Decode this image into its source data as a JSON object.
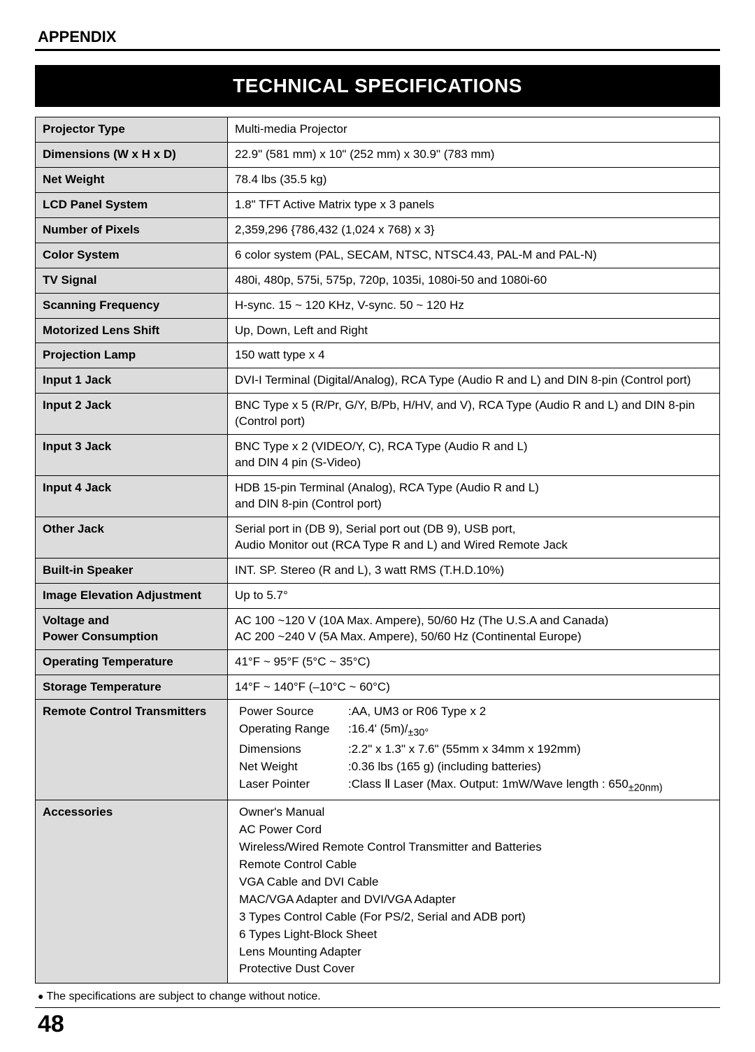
{
  "section": "APPENDIX",
  "title": "TECHNICAL SPECIFICATIONS",
  "footnote_bullet": "●",
  "footnote": "The specifications are subject to change without notice.",
  "page_number": "48",
  "rows": [
    {
      "k": "Projector Type",
      "v": "Multi-media Projector"
    },
    {
      "k": "Dimensions (W x H x D)",
      "v": "22.9\" (581 mm) x 10\" (252 mm) x 30.9\" (783 mm)"
    },
    {
      "k": "Net Weight",
      "v": "78.4 lbs (35.5 kg)"
    },
    {
      "k": "LCD Panel System",
      "v": "1.8\" TFT Active Matrix type  x 3 panels"
    },
    {
      "k": "Number of Pixels",
      "v": "2,359,296 {786,432 (1,024 x 768) x 3}"
    },
    {
      "k": "Color System",
      "v": "6 color system (PAL, SECAM, NTSC, NTSC4.43, PAL-M and PAL-N)"
    },
    {
      "k": "TV Signal",
      "v": "480i, 480p, 575i, 575p, 720p, 1035i, 1080i-50 and 1080i-60"
    },
    {
      "k": "Scanning Frequency",
      "v": "H-sync. 15 ~ 120 KHz, V-sync. 50 ~ 120 Hz"
    },
    {
      "k": "Motorized Lens Shift",
      "v": "Up, Down, Left and Right"
    },
    {
      "k": "Projection Lamp",
      "v": "150 watt type  x 4"
    },
    {
      "k": "Input 1 Jack",
      "v": "DVI-I  Terminal (Digital/Analog), RCA Type (Audio R and L) and DIN 8-pin (Control port)"
    },
    {
      "k": "Input 2 Jack",
      "v": "BNC Type x 5 (R/Pr, G/Y, B/Pb, H/HV, and V), RCA Type (Audio R and L) and DIN 8-pin (Control port)"
    },
    {
      "k": "Input 3 Jack",
      "v": "BNC Type x 2 (VIDEO/Y, C), RCA Type (Audio R and L)\nand DIN 4 pin (S-Video)"
    },
    {
      "k": "Input 4 Jack",
      "v": "HDB 15-pin Terminal (Analog), RCA Type (Audio R and L)\nand DIN 8-pin (Control port)"
    },
    {
      "k": "Other Jack",
      "v": "Serial port in (DB 9), Serial port out (DB 9), USB port,\nAudio Monitor out (RCA Type R and L) and Wired Remote Jack"
    },
    {
      "k": "Built-in Speaker",
      "v": "INT. SP. Stereo (R and L), 3 watt RMS (T.H.D.10%)"
    },
    {
      "k": "Image Elevation Adjustment",
      "v": "Up to 5.7°"
    },
    {
      "k": "Voltage and\nPower Consumption",
      "v": "AC 100 ~120 V (10A Max. Ampere), 50/60 Hz (The U.S.A and Canada)\nAC 200 ~240 V (5A Max. Ampere), 50/60 Hz (Continental Europe)"
    },
    {
      "k": "Operating Temperature",
      "v": "41°F ~ 95°F (5°C ~ 35°C)"
    },
    {
      "k": "Storage Temperature",
      "v": "14°F ~ 140°F (–10°C ~ 60°C)"
    }
  ],
  "remote_label": "Remote Control Transmitters",
  "remote": {
    "l1": "Power Source",
    "v1": ":AA, UM3 or R06 Type x 2",
    "l2": "Operating Range",
    "v2a": ":16.4' (5m)/",
    "v2b": "±30°",
    "l3": "Dimensions",
    "v3": ":2.2\" x 1.3\" x 7.6\" (55mm x 34mm x 192mm)",
    "l4": "Net Weight",
    "v4": ":0.36 lbs (165 g) (including batteries)",
    "l5": "Laser Pointer",
    "v5a": ":Class ",
    "v5b": "Ⅱ",
    "v5c": " Laser (Max. Output: 1mW/Wave length : 650",
    "v5d": "±20nm)"
  },
  "accessories_label": "Accessories",
  "accessories": [
    "Owner's Manual",
    "AC Power Cord",
    "Wireless/Wired Remote Control Transmitter and Batteries",
    "Remote Control Cable",
    "VGA Cable and DVI Cable",
    "MAC/VGA Adapter and DVI/VGA Adapter",
    "3 Types Control Cable (For PS/2, Serial and ADB port)",
    "6 Types Light-Block Sheet",
    "Lens Mounting Adapter",
    "Protective Dust Cover"
  ]
}
